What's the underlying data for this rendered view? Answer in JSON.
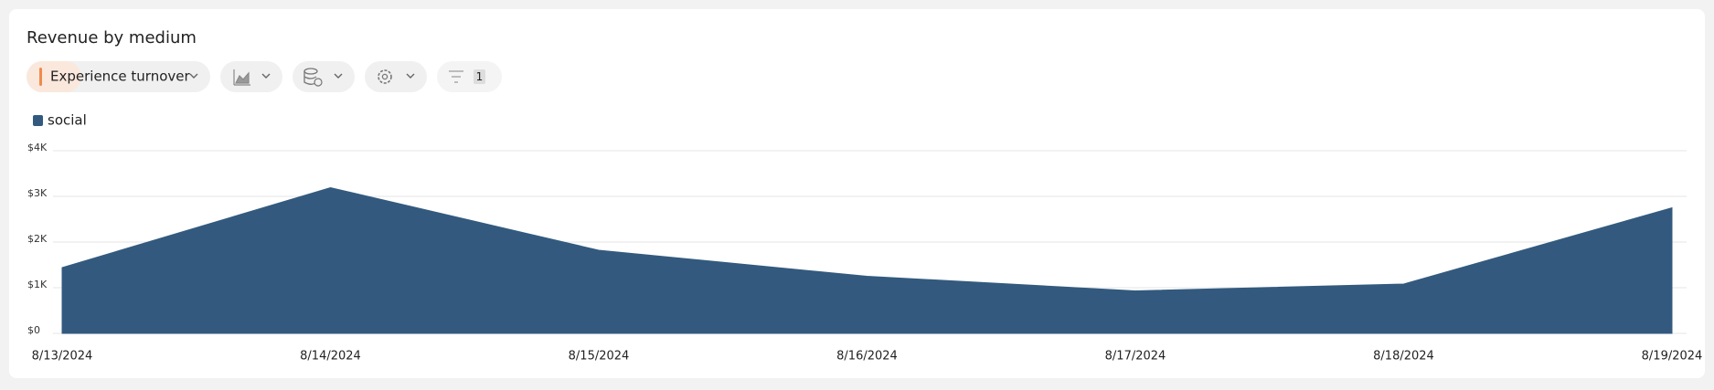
{
  "toolbar": {
    "metric": "Experience turnover",
    "filter_count": 1
  },
  "chart_data": {
    "type": "area",
    "title": "Revenue by medium",
    "categories": [
      "8/13/2024",
      "8/14/2024",
      "8/15/2024",
      "8/16/2024",
      "8/17/2024",
      "8/18/2024",
      "8/19/2024"
    ],
    "series": [
      {
        "name": "social",
        "color": "#335a7e",
        "values": [
          1440,
          3190,
          1820,
          1250,
          930,
          1080,
          2750
        ]
      }
    ],
    "ylim": [
      0,
      4000
    ],
    "yticks": [
      {
        "value": 0,
        "label": "$0"
      },
      {
        "value": 1000,
        "label": "$1K"
      },
      {
        "value": 2000,
        "label": "$2K"
      },
      {
        "value": 3000,
        "label": "$3K"
      },
      {
        "value": 4000,
        "label": "$4K"
      }
    ],
    "grid": true,
    "legend": "top-left"
  }
}
